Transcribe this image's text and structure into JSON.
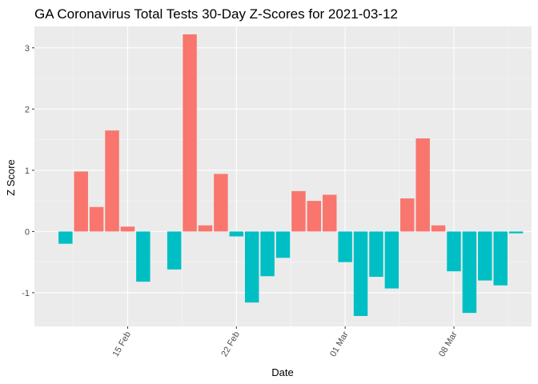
{
  "chart_data": {
    "type": "bar",
    "title": "GA Coronavirus Total Tests 30-Day Z-Scores for 2021-03-12",
    "xlabel": "Date",
    "ylabel": "Z Score",
    "x": [
      "2021-02-11",
      "2021-02-12",
      "2021-02-13",
      "2021-02-14",
      "2021-02-15",
      "2021-02-16",
      "2021-02-17",
      "2021-02-18",
      "2021-02-19",
      "2021-02-20",
      "2021-02-21",
      "2021-02-22",
      "2021-02-23",
      "2021-02-24",
      "2021-02-25",
      "2021-02-26",
      "2021-02-27",
      "2021-02-28",
      "2021-03-01",
      "2021-03-02",
      "2021-03-03",
      "2021-03-04",
      "2021-03-05",
      "2021-03-06",
      "2021-03-07",
      "2021-03-08",
      "2021-03-09",
      "2021-03-10",
      "2021-03-11",
      "2021-03-12"
    ],
    "values": [
      -0.2,
      0.98,
      0.4,
      1.65,
      0.08,
      -0.82,
      0.0,
      -0.62,
      3.22,
      0.1,
      0.94,
      -0.08,
      -1.16,
      -0.73,
      -0.43,
      0.66,
      0.5,
      0.6,
      -0.5,
      -1.38,
      -0.74,
      -0.93,
      0.54,
      1.52,
      0.1,
      -0.65,
      -1.33,
      -0.8,
      -0.88,
      -0.03
    ],
    "positive_color": "#F8766D",
    "negative_color": "#00BFC4",
    "ylim": [
      -1.55,
      3.35
    ],
    "xlim": [
      "2021-02-09",
      "2021-03-13"
    ],
    "y_ticks": [
      -1,
      0,
      1,
      2,
      3
    ],
    "x_ticks": [
      {
        "date": "2021-02-15",
        "label": "15 Feb"
      },
      {
        "date": "2021-02-22",
        "label": "22 Feb"
      },
      {
        "date": "2021-03-01",
        "label": "01 Mar"
      },
      {
        "date": "2021-03-08",
        "label": "08 Mar"
      }
    ],
    "grid": true,
    "legend": "none"
  }
}
